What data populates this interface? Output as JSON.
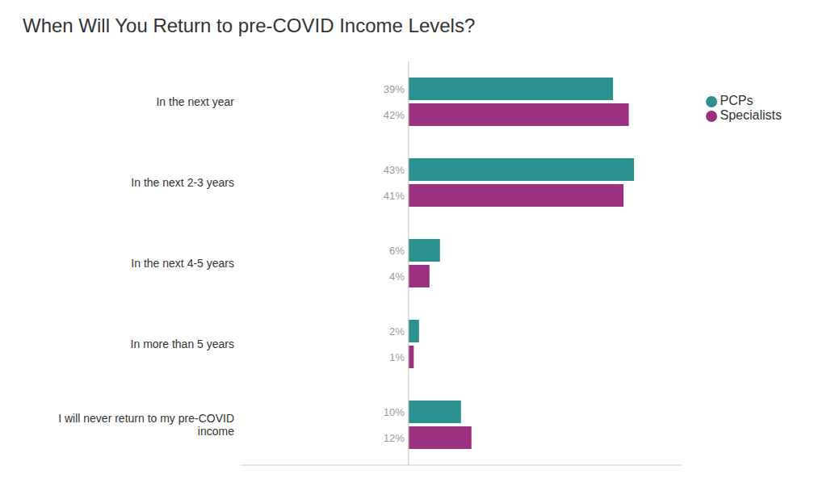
{
  "chart_data": {
    "type": "bar",
    "orientation": "horizontal",
    "title": "When Will You Return to pre-COVID Income Levels?",
    "categories": [
      "In the next year",
      "In the next 2-3 years",
      "In the next 4-5 years",
      "In more than 5 years",
      "I will never return to my pre-COVID\nincome"
    ],
    "series": [
      {
        "name": "PCPs",
        "color": "#2a9090",
        "values": [
          39,
          43,
          6,
          2,
          10
        ],
        "value_labels": [
          "39%",
          "43%",
          "6%",
          "2%",
          "10%"
        ]
      },
      {
        "name": "Specialists",
        "color": "#9b3080",
        "values": [
          42,
          41,
          4,
          1,
          12
        ],
        "value_labels": [
          "42%",
          "41%",
          "4%",
          "1%",
          "12%"
        ]
      }
    ],
    "xlim": [
      -32,
      52
    ],
    "tick_labels": "y",
    "legend": "upper right"
  }
}
